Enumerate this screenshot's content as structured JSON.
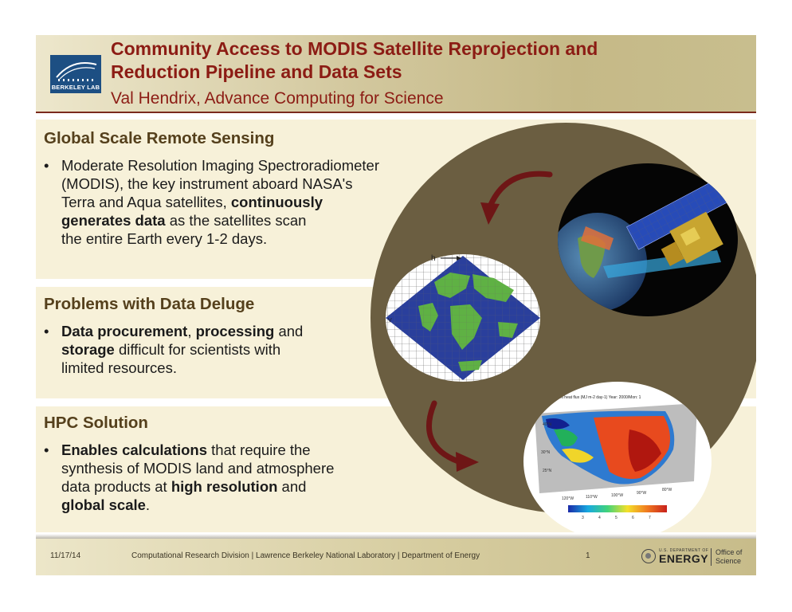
{
  "header": {
    "title_line1": "Community Access to MODIS Satellite Reprojection and",
    "title_line2": "Reduction Pipeline and Data Sets",
    "subtitle": "Val Hendrix, Advance Computing for Science",
    "logo_text": "BERKELEY LAB"
  },
  "sections": [
    {
      "title": "Global Scale Remote Sensing",
      "lines": [
        [
          "Moderate Resolution Imaging Spectroradiometer"
        ],
        [
          "(MODIS), the key instrument aboard NASA's"
        ],
        [
          "Terra and Aqua satellites, ",
          "continuously"
        ],
        [
          "generates data",
          " as the satellites scan"
        ],
        [
          "the entire Earth every 1-2 days."
        ]
      ]
    },
    {
      "title": "Problems with Data Deluge",
      "lines": [
        [
          "Data procurement",
          ", ",
          "processing",
          " and"
        ],
        [
          "storage",
          " difficult for scientists with"
        ],
        [
          "limited resources."
        ]
      ]
    },
    {
      "title": "HPC Solution",
      "lines": [
        [
          "Enables calculations",
          " that require the"
        ],
        [
          "synthesis of MODIS land and atmosphere"
        ],
        [
          "data products at ",
          "high resolution",
          " and"
        ],
        [
          "global scale",
          "."
        ]
      ]
    }
  ],
  "bullet_glyph": "•",
  "map": {
    "h_label": "h",
    "v_label": "V"
  },
  "heatmap": {
    "title": "Latent heat flux (MJ m-2 day-1)  Year: 2000/Mon: 1",
    "lat_labels": [
      "40°N",
      "30°N",
      "25°N"
    ],
    "lon_labels": [
      "120°W",
      "110°W",
      "100°W",
      "90°W",
      "80°W"
    ],
    "colorbar_ticks": [
      "3",
      "4",
      "5",
      "6",
      "7"
    ]
  },
  "footer": {
    "date": "11/17/14",
    "org": "Computational Research Division | Lawrence Berkeley National Laboratory | Department of Energy",
    "page": "1",
    "energy_small": "U.S. DEPARTMENT OF",
    "energy_word": "ENERGY",
    "office_line1": "Office of",
    "office_line2": "Science"
  },
  "colors": {
    "title": "#8c1c14",
    "section_title": "#55401c",
    "band": "#f7f1d9",
    "circle": "#6b5e41",
    "arrow": "#6e1616"
  }
}
